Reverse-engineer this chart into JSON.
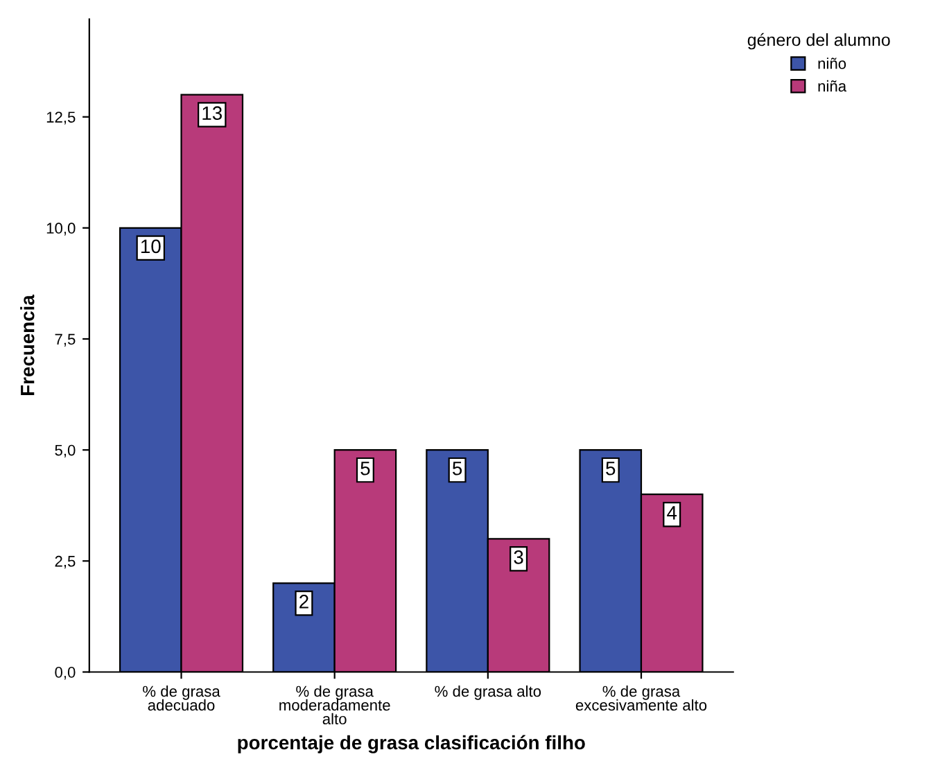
{
  "chart_data": {
    "type": "bar",
    "xlabel": "porcentaje de grasa clasificación filho",
    "ylabel": "Frecuencia",
    "legend_title": "género del alumno",
    "categories": [
      "% de grasa\nadecuado",
      "% de grasa\nmoderadamente\nalto",
      "% de grasa alto",
      "% de grasa\nexcesivamente alto"
    ],
    "series": [
      {
        "name": "niño",
        "color": "#3d55a8",
        "values": [
          10,
          2,
          5,
          5
        ]
      },
      {
        "name": "niña",
        "color": "#b83a7a",
        "values": [
          13,
          5,
          3,
          4
        ]
      }
    ],
    "ylim": [
      0,
      14.7
    ],
    "yticks": [
      {
        "value": 0,
        "label": "0,0"
      },
      {
        "value": 2.5,
        "label": "2,5"
      },
      {
        "value": 5,
        "label": "5,0"
      },
      {
        "value": 7.5,
        "label": "7,5"
      },
      {
        "value": 10,
        "label": "10,0"
      },
      {
        "value": 12.5,
        "label": "12,5"
      }
    ],
    "data_labels": true,
    "grid": false,
    "legend": "top right"
  }
}
